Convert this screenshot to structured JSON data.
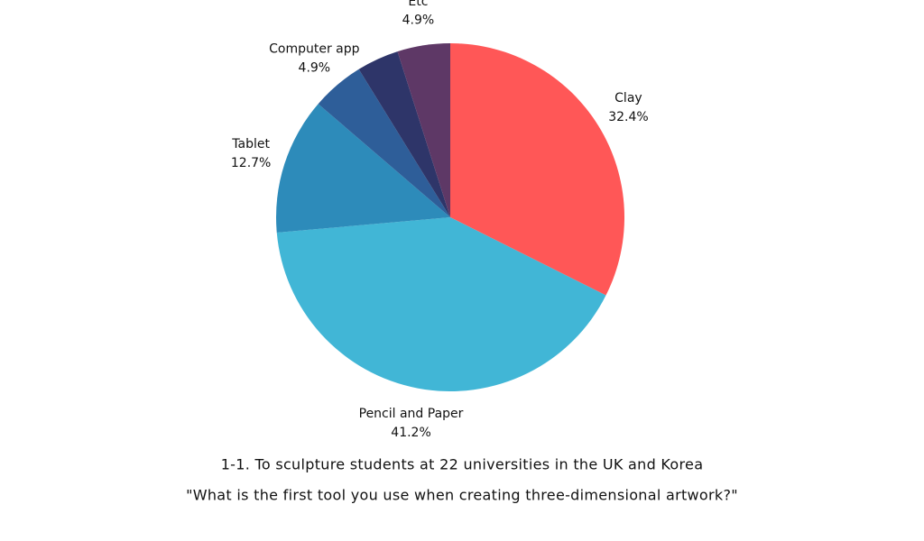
{
  "chart_data": {
    "type": "pie",
    "title": "1-1. To sculpture students at 22 universities in the UK and Korea",
    "subtitle": "\"What is the first tool you use when creating three-dimensional artwork?\"",
    "categories": [
      "Clay",
      "Pencil and Paper",
      "Tablet",
      "Computer app",
      null,
      "Etc"
    ],
    "values": [
      32.4,
      41.2,
      12.7,
      4.9,
      3.9,
      4.9
    ],
    "value_labels": [
      "32.4%",
      "41.2%",
      "12.7%",
      "4.9%",
      null,
      "4.9%"
    ],
    "colors": [
      "#ff5757",
      "#41b6d6",
      "#2d8bba",
      "#2e5e99",
      "#2e3569",
      "#5e3866"
    ]
  }
}
